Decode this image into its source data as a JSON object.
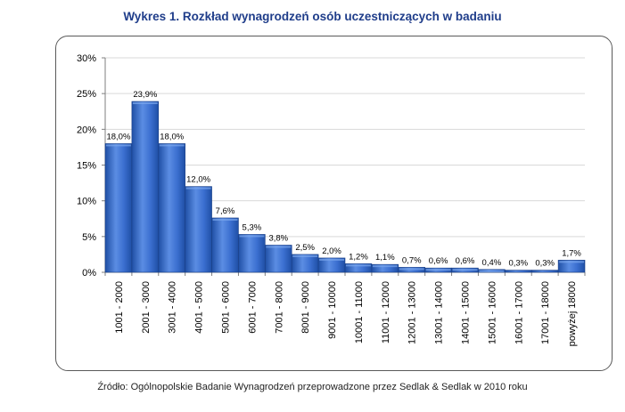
{
  "title": "Wykres 1. Rozkład wynagrodzeń osób uczestniczących w badaniu",
  "source": "Źródło: Ogólnopolskie Badanie Wynagrodzeń przeprowadzone przez Sedlak & Sedlak w 2010 roku",
  "colors": {
    "bar": "#3b6fd0",
    "bar_light": "#7aa6ec",
    "bar_dark": "#1f4fa5",
    "grid": "#d9d9d9",
    "axis": "#7f7f7f",
    "title": "#1f3d8a"
  },
  "chart_data": {
    "type": "bar",
    "title": "Wykres 1. Rozkład wynagrodzeń osób uczestniczących w badaniu",
    "xlabel": "",
    "ylabel": "",
    "ylim": [
      0,
      30
    ],
    "yticks": [
      "0%",
      "5%",
      "10%",
      "15%",
      "20%",
      "25%",
      "30%"
    ],
    "ytick_values": [
      0,
      5,
      10,
      15,
      20,
      25,
      30
    ],
    "grid": true,
    "legend": "none",
    "categories": [
      "1001 - 2000",
      "2001 - 3000",
      "3001 - 4000",
      "4001 - 5000",
      "5001 - 6000",
      "6001 - 7000",
      "7001 - 8000",
      "8001 - 9000",
      "9001 - 10000",
      "10001 - 11000",
      "11001 - 12000",
      "12001 - 13000",
      "13001 - 14000",
      "14001 - 15000",
      "15001 - 16000",
      "16001 - 17000",
      "17001 - 18000",
      "powyżej 18000"
    ],
    "values": [
      18.0,
      23.9,
      18.0,
      12.0,
      7.6,
      5.3,
      3.8,
      2.5,
      2.0,
      1.2,
      1.1,
      0.7,
      0.6,
      0.6,
      0.4,
      0.3,
      0.3,
      1.7
    ],
    "data_labels": [
      "18,0%",
      "23,9%",
      "18,0%",
      "12,0%",
      "7,6%",
      "5,3%",
      "3,8%",
      "2,5%",
      "2,0%",
      "1,2%",
      "1,1%",
      "0,7%",
      "0,6%",
      "0,6%",
      "0,4%",
      "0,3%",
      "0,3%",
      "1,7%"
    ]
  }
}
